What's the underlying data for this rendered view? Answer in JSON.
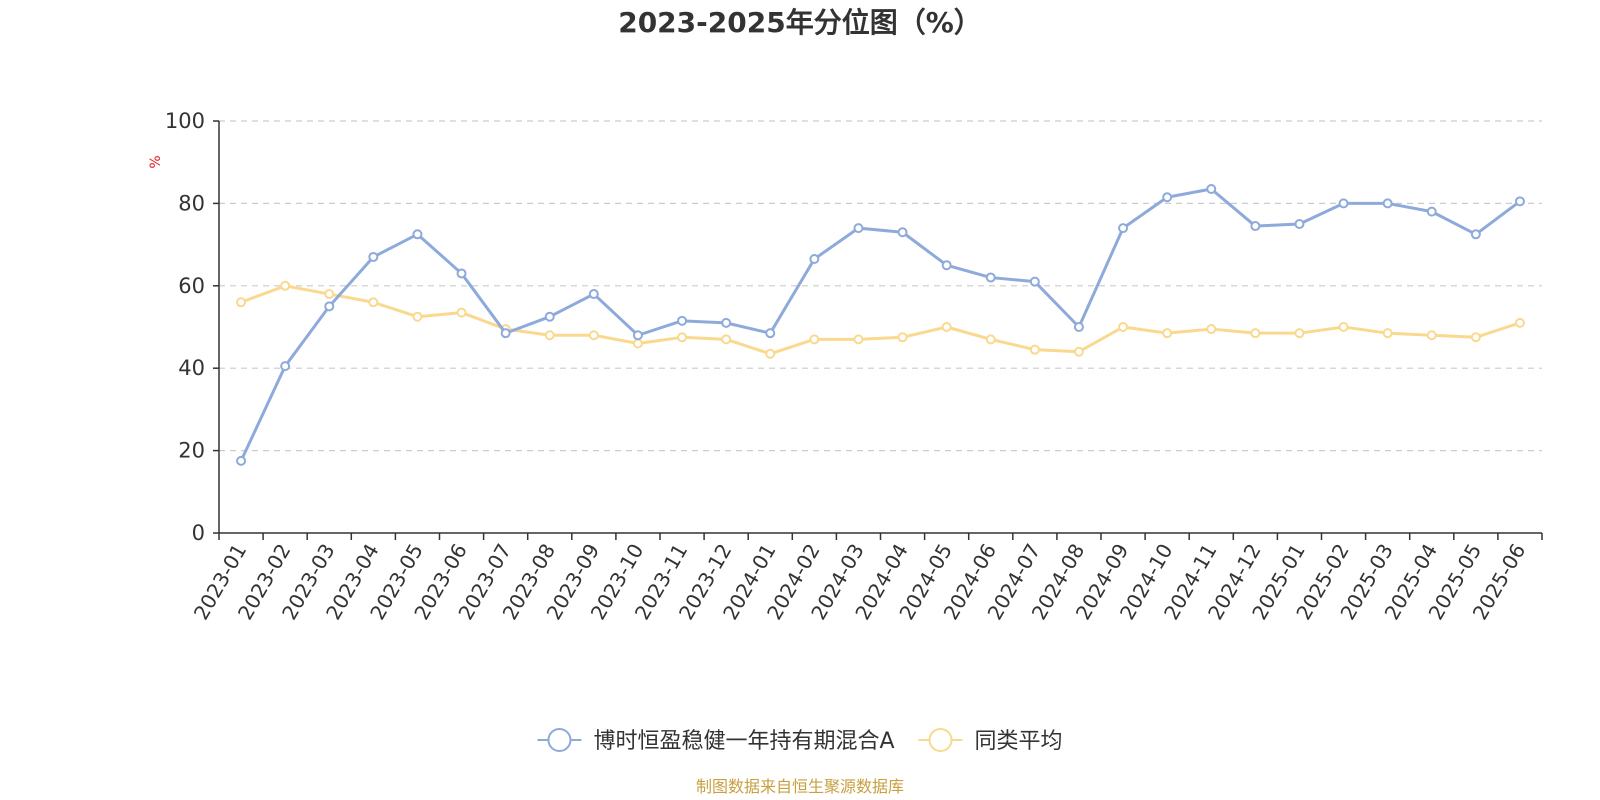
{
  "chart_data": {
    "type": "line",
    "title": "2023-2025年分位图（%）",
    "ylabel": "%",
    "xlabel": "",
    "ylim": [
      0,
      100
    ],
    "yticks": [
      "0",
      "20",
      "40",
      "60",
      "80",
      "100"
    ],
    "grid": true,
    "legend_position": "bottom",
    "categories": [
      "2023-01",
      "2023-02",
      "2023-03",
      "2023-04",
      "2023-05",
      "2023-06",
      "2023-07",
      "2023-08",
      "2023-09",
      "2023-10",
      "2023-11",
      "2023-12",
      "2024-01",
      "2024-02",
      "2024-03",
      "2024-04",
      "2024-05",
      "2024-06",
      "2024-07",
      "2024-08",
      "2024-09",
      "2024-10",
      "2024-11",
      "2024-12",
      "2025-01",
      "2025-02",
      "2025-03",
      "2025-04",
      "2025-05",
      "2025-06"
    ],
    "series": [
      {
        "name": "博时恒盈稳健一年持有期混合A",
        "color": "#8eaadb",
        "values": [
          17.5,
          40.5,
          55,
          67,
          72.5,
          63,
          48.5,
          52.5,
          58,
          48,
          51.5,
          51,
          48.5,
          66.5,
          74,
          73,
          65,
          62,
          61,
          50,
          74,
          81.5,
          83.5,
          74.5,
          75,
          80,
          80,
          78,
          72.5,
          80.5
        ]
      },
      {
        "name": "同类平均",
        "color": "#fad98f",
        "values": [
          56,
          60,
          58,
          56,
          52.5,
          53.5,
          49.5,
          48,
          48,
          46,
          47.5,
          47,
          43.5,
          47,
          47,
          47.5,
          50,
          47,
          44.5,
          44,
          50,
          48.5,
          49.5,
          48.5,
          48.5,
          50,
          48.5,
          48,
          47.5,
          51
        ]
      }
    ],
    "source": "制图数据来自恒生聚源数据库"
  }
}
